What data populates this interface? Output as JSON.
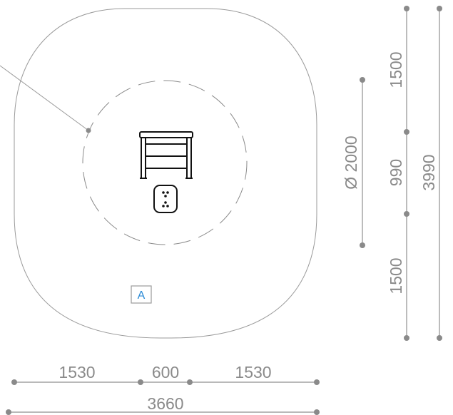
{
  "dimensions": {
    "bottom": {
      "left_segment": "1530",
      "middle_segment": "600",
      "right_segment": "1530",
      "overall": "3660"
    },
    "right_inner": {
      "top_segment": "1500",
      "middle_segment": "990",
      "bottom_segment": "1500"
    },
    "right_outer": {
      "overall": "3990"
    },
    "diameter": "Ø 2000"
  },
  "zone_marker": {
    "label": "A",
    "color": "#2a8ad6"
  },
  "colors": {
    "dimension": "#8a8a8a",
    "equipment": "#111111",
    "zone_outline": "#9a9a9a"
  }
}
